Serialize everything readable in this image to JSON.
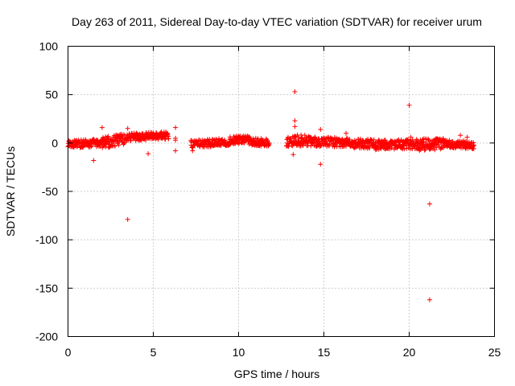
{
  "chart_data": {
    "type": "scatter",
    "title": "Day 263 of 2011, Sidereal Day-to-day VTEC variation (SDTVAR) for receiver urum",
    "xlabel": "GPS time / hours",
    "ylabel": "SDTVAR / TECUs",
    "xlim": [
      0,
      25
    ],
    "ylim": [
      -200,
      100
    ],
    "xticks": [
      0,
      5,
      10,
      15,
      20,
      25
    ],
    "yticks": [
      -200,
      -150,
      -100,
      -50,
      0,
      50,
      100
    ],
    "grid": true,
    "marker": "plus",
    "color": "#ff0000",
    "dense_bands": [
      {
        "x": [
          0.0,
          2.0
        ],
        "y_center": [
          -1,
          0
        ],
        "spread": 4
      },
      {
        "x": [
          2.0,
          3.4
        ],
        "y_center": [
          0,
          5
        ],
        "spread": 6
      },
      {
        "x": [
          3.4,
          5.9
        ],
        "y_center": [
          6,
          8
        ],
        "spread": 4
      },
      {
        "x": [
          7.2,
          9.5
        ],
        "y_center": [
          -1,
          1
        ],
        "spread": 4
      },
      {
        "x": [
          9.5,
          10.6
        ],
        "y_center": [
          3,
          4
        ],
        "spread": 4
      },
      {
        "x": [
          10.6,
          11.8
        ],
        "y_center": [
          2,
          0
        ],
        "spread": 4
      },
      {
        "x": [
          12.8,
          14.0
        ],
        "y_center": [
          2,
          3
        ],
        "spread": 6
      },
      {
        "x": [
          14.0,
          16.5
        ],
        "y_center": [
          2,
          0
        ],
        "spread": 5
      },
      {
        "x": [
          16.5,
          18.0
        ],
        "y_center": [
          0,
          -1
        ],
        "spread": 5
      },
      {
        "x": [
          18.0,
          20.5
        ],
        "y_center": [
          -2,
          -1
        ],
        "spread": 5
      },
      {
        "x": [
          20.5,
          22.0
        ],
        "y_center": [
          -2,
          0
        ],
        "spread": 6
      },
      {
        "x": [
          22.0,
          23.8
        ],
        "y_center": [
          -1,
          -2
        ],
        "spread": 4
      }
    ],
    "points": [
      {
        "x": 1.5,
        "y": -18
      },
      {
        "x": 2.0,
        "y": 16
      },
      {
        "x": 3.5,
        "y": 15
      },
      {
        "x": 3.5,
        "y": -79
      },
      {
        "x": 4.7,
        "y": -11
      },
      {
        "x": 6.3,
        "y": 16
      },
      {
        "x": 6.3,
        "y": 5
      },
      {
        "x": 6.3,
        "y": 3
      },
      {
        "x": 6.3,
        "y": -8
      },
      {
        "x": 7.3,
        "y": -8
      },
      {
        "x": 13.3,
        "y": 53
      },
      {
        "x": 13.3,
        "y": 23
      },
      {
        "x": 13.3,
        "y": 17
      },
      {
        "x": 13.2,
        "y": -12
      },
      {
        "x": 14.8,
        "y": -22
      },
      {
        "x": 14.8,
        "y": 14
      },
      {
        "x": 16.3,
        "y": 10
      },
      {
        "x": 20.0,
        "y": 39
      },
      {
        "x": 20.1,
        "y": 6
      },
      {
        "x": 21.2,
        "y": -63
      },
      {
        "x": 21.2,
        "y": -162
      },
      {
        "x": 21.5,
        "y": -7
      },
      {
        "x": 23.0,
        "y": 8
      },
      {
        "x": 23.4,
        "y": 6
      }
    ]
  }
}
